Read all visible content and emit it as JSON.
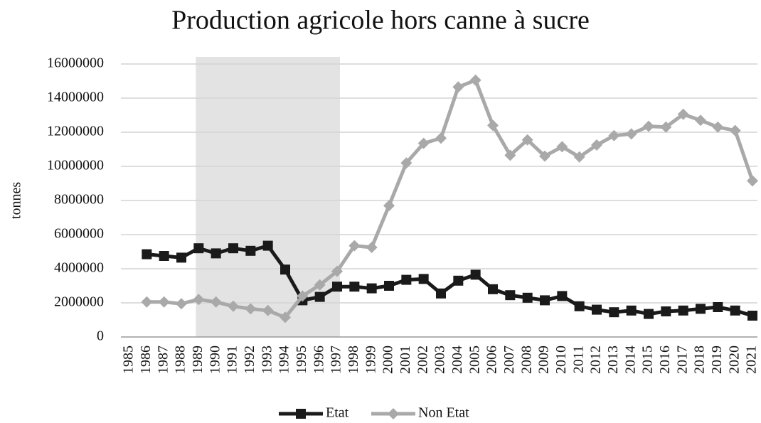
{
  "chart_data": {
    "type": "line",
    "title": "Production agricole hors canne à sucre",
    "ylabel": "tonnes",
    "categories": [
      "1985",
      "1986",
      "1987",
      "1988",
      "1989",
      "1990",
      "1991",
      "1992",
      "1993",
      "1994",
      "1995",
      "1996",
      "1997",
      "1998",
      "1999",
      "2000",
      "2001",
      "2002",
      "2003",
      "2004",
      "2005",
      "2006",
      "2007",
      "2008",
      "2009",
      "2010",
      "2011",
      "2012",
      "2013",
      "2014",
      "2015",
      "2016",
      "2017",
      "2018",
      "2019",
      "2020",
      "2021"
    ],
    "series": [
      {
        "name": "Etat",
        "color": "#1a1a1a",
        "marker": "square",
        "values": [
          null,
          4850000,
          4750000,
          4650000,
          5200000,
          4900000,
          5200000,
          5050000,
          5350000,
          3950000,
          2150000,
          2350000,
          2950000,
          2950000,
          2850000,
          3000000,
          3350000,
          3400000,
          2550000,
          3300000,
          3650000,
          2800000,
          2450000,
          2300000,
          2150000,
          2400000,
          1800000,
          1600000,
          1450000,
          1550000,
          1350000,
          1500000,
          1550000,
          1650000,
          1750000,
          1550000,
          1250000
        ]
      },
      {
        "name": "Non Etat",
        "color": "#a9a9a9",
        "marker": "diamond",
        "values": [
          null,
          2050000,
          2050000,
          1950000,
          2200000,
          2050000,
          1800000,
          1650000,
          1550000,
          1150000,
          2400000,
          3050000,
          3850000,
          5350000,
          5250000,
          7700000,
          10200000,
          11350000,
          11650000,
          14650000,
          15050000,
          12400000,
          10650000,
          11550000,
          10600000,
          11150000,
          10550000,
          11250000,
          11800000,
          11900000,
          12350000,
          12300000,
          13050000,
          12700000,
          12300000,
          12100000,
          9150000
        ]
      }
    ],
    "highlight": [
      "1989",
      "1997"
    ],
    "ylim": [
      0,
      16000000
    ],
    "yticks": [
      0,
      2000000,
      4000000,
      6000000,
      8000000,
      10000000,
      12000000,
      14000000,
      16000000
    ],
    "grid": true,
    "legend": "bottom"
  }
}
